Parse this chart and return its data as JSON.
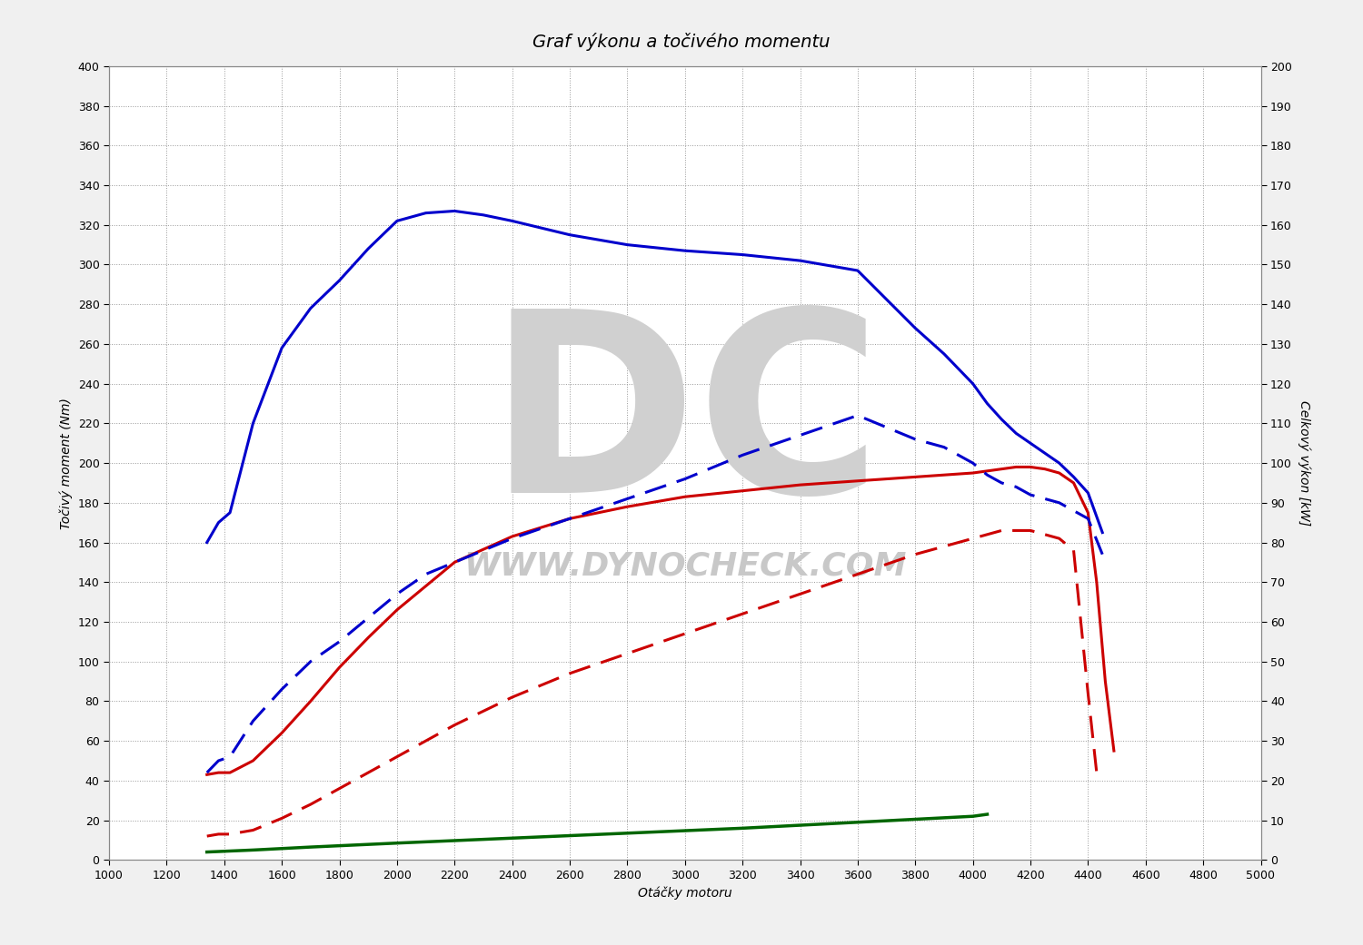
{
  "title": "Graf výkonu a točivého momentu",
  "xlabel": "Otáčky motoru",
  "ylabel_left": "Točivý moment (Nm)",
  "ylabel_right": "Celkový výkon [kW]",
  "xlim": [
    1000,
    5000
  ],
  "ylim_left": [
    0,
    400
  ],
  "ylim_right": [
    0,
    200
  ],
  "xticks": [
    1000,
    1200,
    1400,
    1600,
    1800,
    2000,
    2200,
    2400,
    2600,
    2800,
    3000,
    3200,
    3400,
    3600,
    3800,
    4000,
    4200,
    4400,
    4600,
    4800,
    5000
  ],
  "yticks_left": [
    0,
    20,
    40,
    60,
    80,
    100,
    120,
    140,
    160,
    180,
    200,
    220,
    240,
    260,
    280,
    300,
    320,
    340,
    360,
    380,
    400
  ],
  "yticks_right": [
    0,
    10,
    20,
    30,
    40,
    50,
    60,
    70,
    80,
    90,
    100,
    110,
    120,
    130,
    140,
    150,
    160,
    170,
    180,
    190,
    200
  ],
  "blue_solid_rpm": [
    1340,
    1380,
    1420,
    1500,
    1600,
    1700,
    1800,
    1900,
    2000,
    2100,
    2200,
    2300,
    2400,
    2600,
    2800,
    3000,
    3200,
    3400,
    3600,
    3800,
    3900,
    4000,
    4050,
    4100,
    4150,
    4200,
    4250,
    4300,
    4350,
    4400,
    4450
  ],
  "blue_solid_torque": [
    160,
    170,
    175,
    220,
    258,
    278,
    292,
    308,
    322,
    326,
    327,
    325,
    322,
    315,
    310,
    307,
    305,
    302,
    297,
    268,
    255,
    240,
    230,
    222,
    215,
    210,
    205,
    200,
    193,
    185,
    165
  ],
  "blue_dashed_rpm": [
    1340,
    1380,
    1420,
    1500,
    1600,
    1700,
    1800,
    1900,
    2000,
    2100,
    2200,
    2300,
    2400,
    2600,
    2800,
    3000,
    3200,
    3400,
    3600,
    3800,
    3900,
    4000,
    4050,
    4100,
    4150,
    4200,
    4250,
    4300,
    4350,
    4400,
    4450
  ],
  "blue_dashed_power": [
    22,
    25,
    26,
    35,
    43,
    50,
    55,
    61,
    67,
    72,
    75,
    78,
    81,
    86,
    91,
    96,
    102,
    107,
    112,
    106,
    104,
    100,
    97,
    95,
    94,
    92,
    91,
    90,
    88,
    86,
    77
  ],
  "red_solid_rpm": [
    1340,
    1380,
    1420,
    1500,
    1600,
    1700,
    1800,
    1900,
    2000,
    2200,
    2400,
    2600,
    2800,
    3000,
    3200,
    3400,
    3600,
    3800,
    3900,
    4000,
    4050,
    4100,
    4150,
    4200,
    4250,
    4300,
    4350,
    4400,
    4430,
    4460,
    4490
  ],
  "red_solid_torque": [
    43,
    44,
    44,
    50,
    64,
    80,
    97,
    112,
    126,
    150,
    163,
    172,
    178,
    183,
    186,
    189,
    191,
    193,
    194,
    195,
    196,
    197,
    198,
    198,
    197,
    195,
    190,
    175,
    140,
    90,
    55
  ],
  "red_dashed_rpm": [
    1340,
    1380,
    1420,
    1500,
    1600,
    1700,
    1800,
    1900,
    2000,
    2200,
    2400,
    2600,
    2800,
    3000,
    3200,
    3400,
    3600,
    3800,
    3900,
    4000,
    4050,
    4100,
    4150,
    4200,
    4250,
    4300,
    4350,
    4400,
    4430
  ],
  "red_dashed_power": [
    6,
    6.5,
    6.5,
    7.5,
    10.5,
    14,
    18,
    22,
    26,
    34,
    41,
    47,
    52,
    57,
    62,
    67,
    72,
    77,
    79,
    81,
    82,
    83,
    83,
    83,
    82,
    81,
    78,
    42,
    22
  ],
  "green_rpm": [
    1340,
    1500,
    1700,
    2000,
    2400,
    2800,
    3200,
    3600,
    4000,
    4050
  ],
  "green_values": [
    4,
    5,
    6.5,
    8.5,
    11,
    13.5,
    16,
    19,
    22,
    23
  ],
  "background_color": "#f0f0f0",
  "plot_bg_color": "#ffffff",
  "grid_color": "#999999",
  "title_fontsize": 14,
  "axis_fontsize": 10,
  "tick_fontsize": 9,
  "line_width": 2.2,
  "watermark_text": "WWW.DYNOCHECK.COM",
  "watermark_color": "#c8c8c8",
  "watermark_fontsize": 26,
  "logo_text": "DC",
  "logo_color": "#d0d0d0",
  "logo_fontsize": 200
}
